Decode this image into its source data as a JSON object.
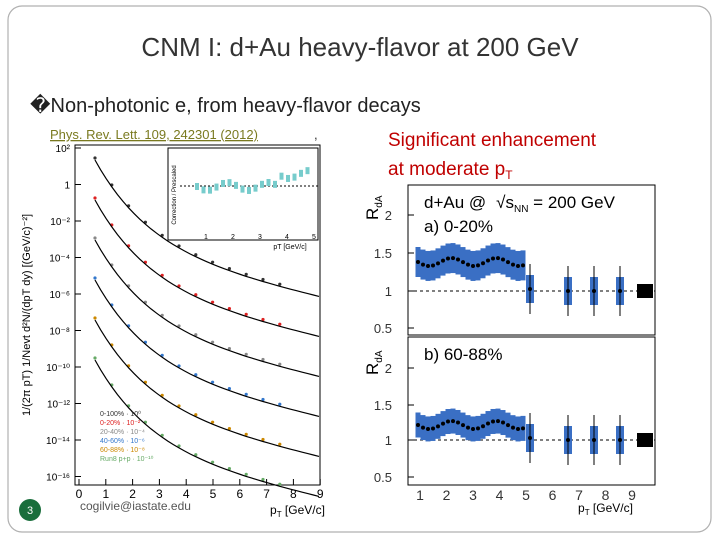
{
  "header": {
    "title": "CNM I: d+Au heavy-flavor at 200 GeV"
  },
  "bullet": {
    "marker": "�",
    "text": "Non-photonic e, from heavy-flavor decays"
  },
  "reference": "Phys. Rev. Lett. 109, 242301 (2012)",
  "reference_suffix": ",",
  "note": {
    "line1": "Significant enhancement",
    "line2": "at moderate p",
    "line2_sub": "T"
  },
  "left_figure": {
    "y_label": "1/(2π pT) 1/Nevt d²N/(dpT dy) [(GeV/c)⁻²]",
    "y_ticks": [
      "10²",
      "1",
      "10⁻²",
      "10⁻⁴",
      "10⁻⁶",
      "10⁻⁸",
      "10⁻¹⁰",
      "10⁻¹²",
      "10⁻¹⁴",
      "10⁻¹⁶"
    ],
    "x_ticks": [
      "0",
      "1",
      "2",
      "3",
      "4",
      "5",
      "6",
      "7",
      "8",
      "9"
    ],
    "x_label": {
      "main": "p",
      "sub": "T",
      "unit": " [GeV/c]"
    },
    "legend": [
      "0-100% · 10⁰",
      "0-20% · 10⁻²",
      "20-40% · 10⁻⁴",
      "40-60% · 10⁻⁶",
      "60-88% · 10⁻⁸",
      "Run8 p+p · 10⁻¹⁰"
    ],
    "inset": {
      "y_label": "Correction / Prescaled",
      "x_label": "pT [GeV/c]",
      "x_ticks": [
        "1",
        "2",
        "3",
        "4",
        "5"
      ]
    }
  },
  "right_figure": {
    "system": "d+Au @",
    "energy": "√s",
    "energy_sub": "NN",
    "energy_value": " = 200 GeV",
    "panel_a": "a) 0-20%",
    "panel_b": "b) 60-88%",
    "y_label": {
      "main": "R",
      "sub": "dA"
    },
    "y_ticks_a": [
      "2",
      "1.5",
      "1",
      "0.5"
    ],
    "y_ticks_b": [
      "2",
      "1.5",
      "1",
      "0.5"
    ],
    "x_ticks": [
      "1",
      "2",
      "3",
      "4",
      "5",
      "6",
      "7",
      "8",
      "9"
    ],
    "x_label": {
      "main": "p",
      "sub": "T",
      "unit": " [GeV/c]"
    }
  },
  "footer": {
    "email": "cogilvie@iastate.edu",
    "slide_number": "3"
  }
}
